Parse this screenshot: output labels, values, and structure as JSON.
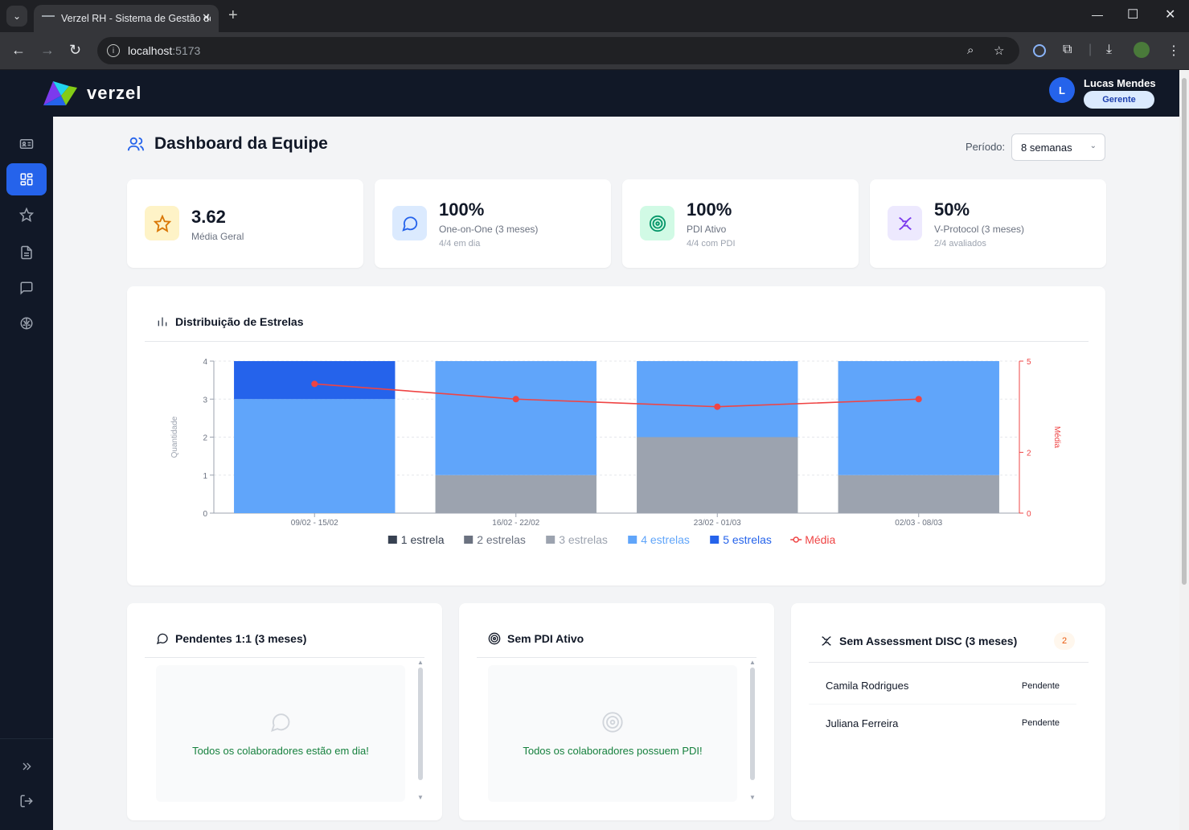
{
  "browser": {
    "tab_title": "Verzel RH - Sistema de Gestão de",
    "url_host": "localhost",
    "url_port": ":5173"
  },
  "header": {
    "logo_text": "verzel",
    "user": {
      "initial": "L",
      "name": "Lucas Mendes",
      "role": "Gerente"
    }
  },
  "sidebar": {
    "items": [
      {
        "icon": "id-card-icon"
      },
      {
        "icon": "dashboard-icon",
        "active": true
      },
      {
        "icon": "star-icon"
      },
      {
        "icon": "document-icon"
      },
      {
        "icon": "chat-icon"
      },
      {
        "icon": "brain-icon"
      }
    ],
    "bottom": [
      {
        "icon": "expand-icon"
      },
      {
        "icon": "logout-icon"
      }
    ]
  },
  "page": {
    "title": "Dashboard da Equipe",
    "periodo_label": "Período:",
    "periodo_value": "8 semanas"
  },
  "stats": [
    {
      "value": "3.62",
      "label": "Média Geral",
      "sub": "",
      "icon": "star-icon",
      "bg": "#fef3c7",
      "fg": "#d97706"
    },
    {
      "value": "100%",
      "label": "One-on-One (3 meses)",
      "sub": "4/4 em dia",
      "icon": "chat-icon",
      "bg": "#dbeafe",
      "fg": "#2563eb"
    },
    {
      "value": "100%",
      "label": "PDI Ativo",
      "sub": "4/4 com PDI",
      "icon": "target-icon",
      "bg": "#d1fae5",
      "fg": "#059669"
    },
    {
      "value": "50%",
      "label": "V-Protocol (3 meses)",
      "sub": "2/4 avaliados",
      "icon": "dna-icon",
      "bg": "#ede9fe",
      "fg": "#7c3aed"
    }
  ],
  "chart_card": {
    "title": "Distribuição de Estrelas"
  },
  "chart_data": {
    "type": "bar",
    "stacked": true,
    "categories": [
      "09/02 - 15/02",
      "16/02 - 22/02",
      "23/02 - 01/03",
      "02/03 - 08/03"
    ],
    "series": [
      {
        "name": "1 estrela",
        "color": "#374151",
        "values": [
          0,
          0,
          0,
          0
        ]
      },
      {
        "name": "2 estrelas",
        "color": "#6b7280",
        "values": [
          0,
          0,
          0,
          0
        ]
      },
      {
        "name": "3 estrelas",
        "color": "#9ca3af",
        "values": [
          0,
          1,
          2,
          1
        ]
      },
      {
        "name": "4 estrelas",
        "color": "#60a5fa",
        "values": [
          3,
          3,
          2,
          3
        ]
      },
      {
        "name": "5 estrelas",
        "color": "#2563eb",
        "values": [
          1,
          0,
          0,
          0
        ]
      }
    ],
    "line": {
      "name": "Média",
      "color": "#ef4444",
      "values": [
        4.25,
        3.75,
        3.5,
        3.75
      ]
    },
    "ylabel": "Quantidade",
    "ylim": [
      0,
      4
    ],
    "yticks": [
      "0",
      "1",
      "2",
      "3",
      "4"
    ],
    "y2label": "Média",
    "y2lim": [
      0,
      5
    ],
    "y2ticks": [
      "0",
      "2",
      "5"
    ],
    "grid": true,
    "legend_position": "bottom"
  },
  "pendentes": {
    "title": "Pendentes 1:1 (3 meses)",
    "empty_text": "Todos os colaboradores estão em dia!"
  },
  "sem_pdi": {
    "title": "Sem PDI Ativo",
    "empty_text": "Todos os colaboradores possuem PDI!"
  },
  "sem_disc": {
    "title": "Sem Assessment DISC (3 meses)",
    "count": "2",
    "rows": [
      {
        "name": "Camila Rodrigues",
        "status": "Pendente"
      },
      {
        "name": "Juliana Ferreira",
        "status": "Pendente"
      }
    ]
  }
}
